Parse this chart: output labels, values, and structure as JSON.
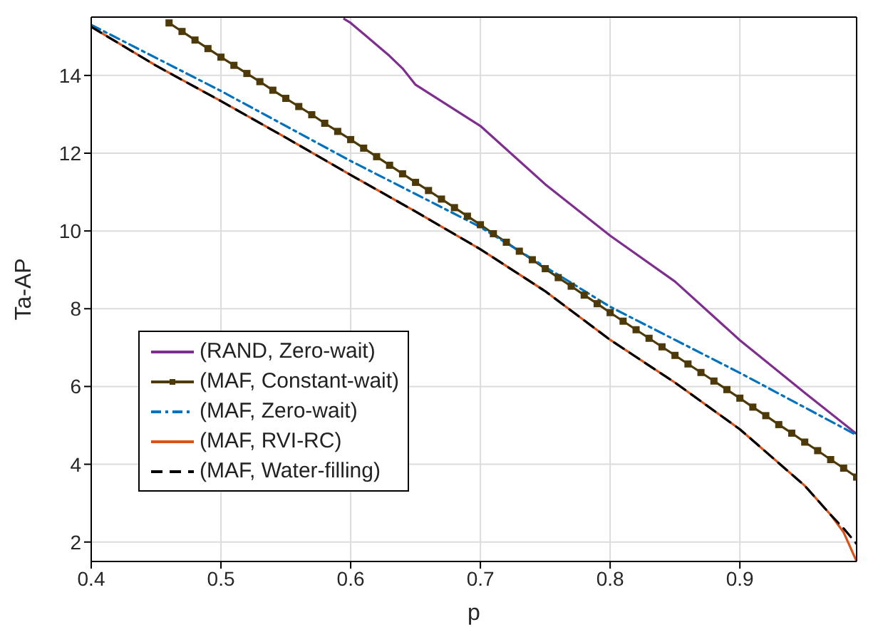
{
  "chart_data": {
    "type": "line",
    "xlabel": "p",
    "ylabel": "Ta-AP",
    "xlim": [
      0.4,
      0.99
    ],
    "ylim": [
      1.5,
      15.5
    ],
    "xticks": [
      0.4,
      0.5,
      0.6,
      0.7,
      0.8,
      0.9
    ],
    "yticks": [
      2,
      4,
      6,
      8,
      10,
      12,
      14
    ],
    "grid": true,
    "legend": "bottom left",
    "series": [
      {
        "name": "(RAND, Zero-wait)",
        "color": "#7e2f8e",
        "line_style": "solid",
        "marker": "none",
        "x": [
          0.595,
          0.6,
          0.63,
          0.64,
          0.65,
          0.7,
          0.75,
          0.8,
          0.85,
          0.9,
          0.95,
          0.99
        ],
        "values": [
          15.45,
          15.35,
          14.5,
          14.18,
          13.76,
          12.7,
          11.2,
          9.88,
          8.7,
          7.19,
          5.84,
          4.78
        ]
      },
      {
        "name": "(MAF, Constant-wait)",
        "color": "#4d3a08",
        "line_style": "solid",
        "marker": "square",
        "x": [
          0.46,
          0.47,
          0.48,
          0.49,
          0.5,
          0.51,
          0.52,
          0.53,
          0.54,
          0.55,
          0.56,
          0.57,
          0.58,
          0.59,
          0.6,
          0.61,
          0.62,
          0.63,
          0.64,
          0.65,
          0.66,
          0.67,
          0.68,
          0.69,
          0.7,
          0.71,
          0.72,
          0.73,
          0.74,
          0.75,
          0.76,
          0.77,
          0.78,
          0.79,
          0.8,
          0.81,
          0.82,
          0.83,
          0.84,
          0.85,
          0.86,
          0.87,
          0.88,
          0.89,
          0.9,
          0.91,
          0.92,
          0.93,
          0.94,
          0.95,
          0.96,
          0.97,
          0.98,
          0.99
        ],
        "values": [
          15.35,
          15.13,
          14.91,
          14.69,
          14.47,
          14.26,
          14.05,
          13.84,
          13.62,
          13.41,
          13.2,
          12.99,
          12.77,
          12.56,
          12.35,
          12.13,
          11.91,
          11.69,
          11.47,
          11.25,
          11.04,
          10.82,
          10.6,
          10.38,
          10.16,
          9.93,
          9.71,
          9.48,
          9.26,
          9.03,
          8.8,
          8.58,
          8.35,
          8.13,
          7.9,
          7.68,
          7.46,
          7.24,
          7.02,
          6.8,
          6.58,
          6.36,
          6.14,
          5.92,
          5.7,
          5.47,
          5.25,
          5.02,
          4.8,
          4.57,
          4.35,
          4.12,
          3.9,
          3.67
        ]
      },
      {
        "name": "(MAF, Zero-wait)",
        "color": "#0072bd",
        "line_style": "dashdot",
        "marker": "none",
        "x": [
          0.4,
          0.5,
          0.6,
          0.7,
          0.8,
          0.9,
          0.99
        ],
        "values": [
          15.3,
          13.6,
          11.8,
          10.1,
          8.05,
          6.35,
          4.75
        ]
      },
      {
        "name": "(MAF, RVI-RC)",
        "color": "#d95319",
        "line_style": "solid",
        "marker": "none",
        "x": [
          0.4,
          0.45,
          0.5,
          0.55,
          0.6,
          0.65,
          0.7,
          0.75,
          0.8,
          0.85,
          0.9,
          0.95,
          0.97,
          0.98,
          0.99
        ],
        "values": [
          15.25,
          14.25,
          13.34,
          12.4,
          11.44,
          10.5,
          9.53,
          8.45,
          7.2,
          6.1,
          4.9,
          3.45,
          2.7,
          2.25,
          1.5
        ]
      },
      {
        "name": "(MAF, Water-filling)",
        "color": "#000000",
        "line_style": "dashed",
        "marker": "none",
        "x": [
          0.4,
          0.45,
          0.5,
          0.55,
          0.6,
          0.65,
          0.7,
          0.75,
          0.8,
          0.85,
          0.9,
          0.95,
          0.97,
          0.98,
          0.99
        ],
        "values": [
          15.25,
          14.25,
          13.34,
          12.4,
          11.44,
          10.5,
          9.53,
          8.45,
          7.2,
          6.1,
          4.9,
          3.45,
          2.7,
          2.35,
          1.95
        ]
      }
    ]
  }
}
